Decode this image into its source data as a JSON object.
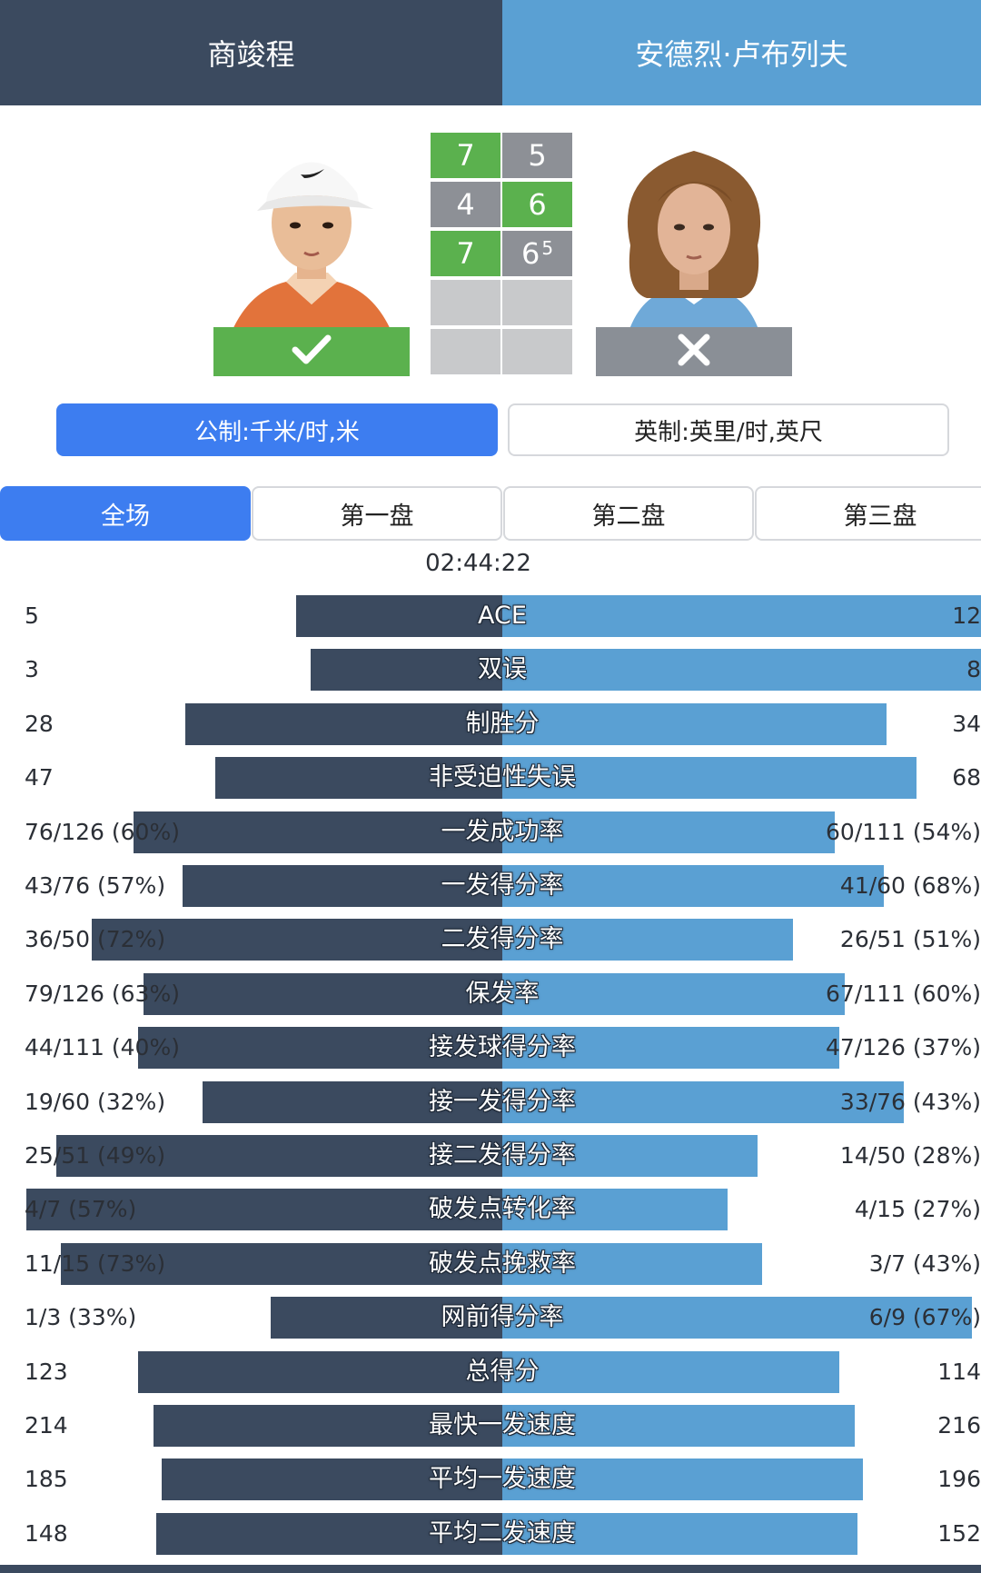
{
  "players": {
    "left": {
      "name": "商竣程",
      "result": "win",
      "result_icon": "check-icon"
    },
    "right": {
      "name": "安德烈·卢布列夫",
      "result": "lose",
      "result_icon": "x-icon"
    }
  },
  "colors": {
    "left": "#3b4a5f",
    "right": "#5aa0d3",
    "win": "#5bb14e",
    "lose": "#8d9096",
    "accent": "#3d7df0"
  },
  "score": {
    "sets": [
      {
        "left": "7",
        "right": "5",
        "right_tiebreak": "",
        "winner": "left"
      },
      {
        "left": "4",
        "right": "6",
        "right_tiebreak": "",
        "winner": "right"
      },
      {
        "left": "7",
        "right": "6",
        "right_tiebreak": "5",
        "winner": "left"
      },
      {
        "left": "",
        "right": "",
        "right_tiebreak": "",
        "winner": ""
      },
      {
        "left": "",
        "right": "",
        "right_tiebreak": "",
        "winner": ""
      }
    ]
  },
  "units": {
    "metric": "公制:千米/时,米",
    "imperial": "英制:英里/时,英尺",
    "selected": "metric"
  },
  "set_tabs": [
    "全场",
    "第一盘",
    "第二盘",
    "第三盘"
  ],
  "selected_tab": "全场",
  "duration": "02:44:22",
  "stats": [
    {
      "label": "ACE",
      "left": "5",
      "right": "12",
      "left_share": 0.294,
      "right_share": 0.706
    },
    {
      "label": "双误",
      "left": "3",
      "right": "8",
      "left_share": 0.273,
      "right_share": 0.727
    },
    {
      "label": "制胜分",
      "left": "28",
      "right": "34",
      "left_share": 0.452,
      "right_share": 0.548
    },
    {
      "label": "非受迫性失误",
      "left": "47",
      "right": "68",
      "left_share": 0.409,
      "right_share": 0.591
    },
    {
      "label": "一发成功率",
      "left": "76/126 (60%)",
      "right": "60/111 (54%)",
      "left_share": 0.526,
      "right_share": 0.474
    },
    {
      "label": "一发得分率",
      "left": "43/76 (57%)",
      "right": "41/60 (68%)",
      "left_share": 0.456,
      "right_share": 0.544
    },
    {
      "label": "二发得分率",
      "left": "36/50 (72%)",
      "right": "26/51 (51%)",
      "left_share": 0.585,
      "right_share": 0.415
    },
    {
      "label": "保发率",
      "left": "79/126 (63%)",
      "right": "67/111 (60%)",
      "left_share": 0.512,
      "right_share": 0.488
    },
    {
      "label": "接发球得分率",
      "left": "44/111 (40%)",
      "right": "47/126 (37%)",
      "left_share": 0.519,
      "right_share": 0.481
    },
    {
      "label": "接一发得分率",
      "left": "19/60 (32%)",
      "right": "33/76 (43%)",
      "left_share": 0.427,
      "right_share": 0.573
    },
    {
      "label": "接二发得分率",
      "left": "25/51 (49%)",
      "right": "14/50 (28%)",
      "left_share": 0.636,
      "right_share": 0.364
    },
    {
      "label": "破发点转化率",
      "left": "4/7 (57%)",
      "right": "4/15 (27%)",
      "left_share": 0.679,
      "right_share": 0.321
    },
    {
      "label": "破发点挽救率",
      "left": "11/15 (73%)",
      "right": "3/7 (43%)",
      "left_share": 0.629,
      "right_share": 0.371
    },
    {
      "label": "网前得分率",
      "left": "1/3 (33%)",
      "right": "6/9 (67%)",
      "left_share": 0.33,
      "right_share": 0.67
    },
    {
      "label": "总得分",
      "left": "123",
      "right": "114",
      "left_share": 0.519,
      "right_share": 0.481
    },
    {
      "label": "最快一发速度",
      "left": "214",
      "right": "216",
      "left_share": 0.498,
      "right_share": 0.502
    },
    {
      "label": "平均一发速度",
      "left": "185",
      "right": "196",
      "left_share": 0.486,
      "right_share": 0.514
    },
    {
      "label": "平均二发速度",
      "left": "148",
      "right": "152",
      "left_share": 0.493,
      "right_share": 0.507
    }
  ]
}
